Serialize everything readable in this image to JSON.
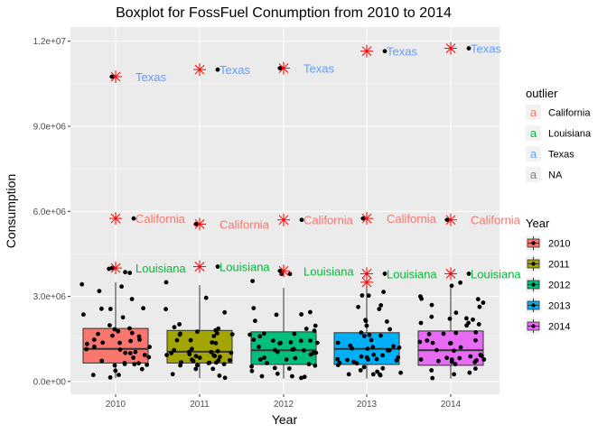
{
  "chart_data": {
    "type": "boxplot",
    "title": "Boxplot for FossFuel Conumption from 2010 to 2014",
    "xlabel": "Year",
    "ylabel": "Consumption",
    "categories": [
      "2010",
      "2011",
      "2012",
      "2013",
      "2014"
    ],
    "ylim": [
      -450000,
      12500000
    ],
    "yticks": [
      0,
      3000000,
      6000000,
      9000000,
      12000000
    ],
    "ytick_labels": [
      "0.0e+00",
      "3.0e+06",
      "6.0e+06",
      "9.0e+06",
      "1.2e+07"
    ],
    "boxes": [
      {
        "year": "2010",
        "q1": 650000,
        "median": 1150000,
        "q3": 1870000,
        "whisker_low": 120000,
        "whisker_high": 3500000,
        "color": "#F8766D"
      },
      {
        "year": "2011",
        "q1": 650000,
        "median": 1050000,
        "q3": 1800000,
        "whisker_low": 120000,
        "whisker_high": 3400000,
        "color": "#A3A500"
      },
      {
        "year": "2012",
        "q1": 600000,
        "median": 1100000,
        "q3": 1750000,
        "whisker_low": 100000,
        "whisker_high": 3300000,
        "color": "#00BF7D"
      },
      {
        "year": "2013",
        "q1": 600000,
        "median": 1150000,
        "q3": 1720000,
        "whisker_low": 100000,
        "whisker_high": 3400000,
        "color": "#00B0F6"
      },
      {
        "year": "2014",
        "q1": 570000,
        "median": 1100000,
        "q3": 1780000,
        "whisker_low": 100000,
        "whisker_high": 3300000,
        "color": "#E76BF3"
      }
    ],
    "outliers": [
      {
        "year": "2010",
        "state": "Texas",
        "value": 10750000
      },
      {
        "year": "2010",
        "state": "California",
        "value": 5750000
      },
      {
        "year": "2010",
        "state": "Louisiana",
        "value": 4000000
      },
      {
        "year": "2011",
        "state": "Texas",
        "value": 11000000
      },
      {
        "year": "2011",
        "state": "California",
        "value": 5550000
      },
      {
        "year": "2011",
        "state": "Louisiana",
        "value": 4050000
      },
      {
        "year": "2012",
        "state": "Texas",
        "value": 11050000
      },
      {
        "year": "2012",
        "state": "California",
        "value": 5700000
      },
      {
        "year": "2012",
        "state": "Louisiana",
        "value": 3900000
      },
      {
        "year": "2013",
        "state": "Texas",
        "value": 11650000
      },
      {
        "year": "2013",
        "state": "California",
        "value": 5750000
      },
      {
        "year": "2013",
        "state": "Louisiana",
        "value": 3800000
      },
      {
        "year": "2013",
        "state": "",
        "value": 3500000
      },
      {
        "year": "2014",
        "state": "Texas",
        "value": 11750000
      },
      {
        "year": "2014",
        "state": "California",
        "value": 5700000
      },
      {
        "year": "2014",
        "state": "Louisiana",
        "value": 3800000
      }
    ],
    "outlier_legend": {
      "title": "outlier",
      "entries": [
        {
          "label": "California",
          "color": "#F8766D"
        },
        {
          "label": "Louisiana",
          "color": "#00BA38"
        },
        {
          "label": "Texas",
          "color": "#619CFF"
        },
        {
          "label": "NA",
          "color": "#7F7F7F"
        }
      ]
    },
    "year_legend": {
      "title": "Year",
      "entries": [
        {
          "label": "2010",
          "color": "#F8766D"
        },
        {
          "label": "2011",
          "color": "#A3A500"
        },
        {
          "label": "2012",
          "color": "#00BF7D"
        },
        {
          "label": "2013",
          "color": "#00B0F6"
        },
        {
          "label": "2014",
          "color": "#E76BF3"
        }
      ]
    },
    "legend_placement": "right",
    "grid": true,
    "panel_color": "#EBEBEB",
    "outlier_marker_color": "#FF0000"
  }
}
